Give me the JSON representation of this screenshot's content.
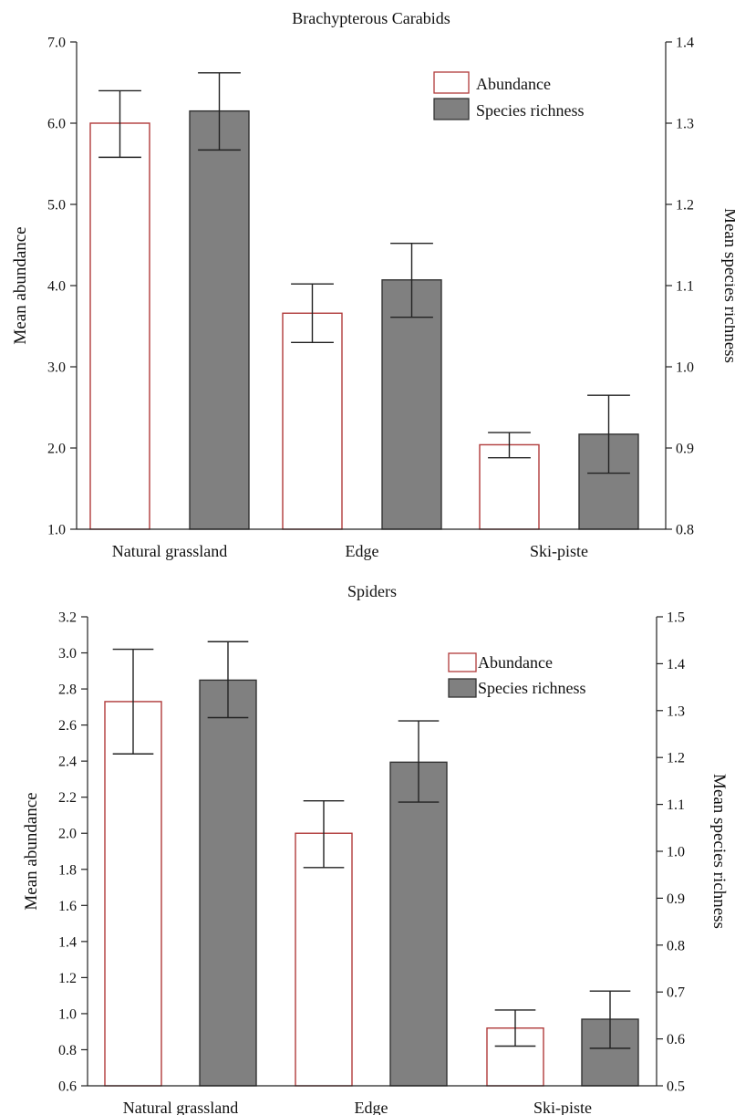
{
  "colors": {
    "abundance_edge": "#b03a3a",
    "abundance_fill": "#ffffff",
    "richness_fill": "#808080",
    "richness_edge": "#333333"
  },
  "chart_data": [
    {
      "type": "bar",
      "title": "Brachypterous Carabids",
      "categories": [
        "Natural grassland",
        "Edge",
        "Ski-piste"
      ],
      "ylabel": "Mean abundance",
      "y2label": "Mean species richness",
      "ylim": [
        1.0,
        7.0
      ],
      "y2lim": [
        0.8,
        1.4
      ],
      "yticks": [
        "1.0",
        "2.0",
        "3.0",
        "4.0",
        "5.0",
        "6.0",
        "7.0"
      ],
      "y2ticks": [
        "0.8",
        "0.9",
        "1.0",
        "1.1",
        "1.2",
        "1.3",
        "1.4"
      ],
      "legend": {
        "position": "top-right",
        "entries": [
          "Abundance",
          "Species richness"
        ]
      },
      "series": [
        {
          "name": "Abundance",
          "axis": "left",
          "values": [
            6.0,
            3.66,
            2.04
          ],
          "err_low": [
            5.58,
            3.3,
            1.88
          ],
          "err_high": [
            6.4,
            4.02,
            2.19
          ]
        },
        {
          "name": "Species richness",
          "axis": "right",
          "values": [
            1.315,
            1.107,
            0.917
          ],
          "err_low": [
            1.267,
            1.061,
            0.869
          ],
          "err_high": [
            1.362,
            1.152,
            0.965
          ]
        }
      ]
    },
    {
      "type": "bar",
      "title": "Spiders",
      "categories": [
        "Natural grassland",
        "Edge",
        "Ski-piste"
      ],
      "ylabel": "Mean abundance",
      "y2label": "Mean species richness",
      "ylim": [
        0.6,
        3.2
      ],
      "y2lim": [
        0.5,
        1.5
      ],
      "yticks": [
        "0.6",
        "0.8",
        "1.0",
        "1.2",
        "1.4",
        "1.6",
        "1.8",
        "2.0",
        "2.2",
        "2.4",
        "2.6",
        "2.8",
        "3.0",
        "3.2"
      ],
      "y2ticks": [
        "0.5",
        "0.6",
        "0.7",
        "0.8",
        "0.9",
        "1.0",
        "1.1",
        "1.2",
        "1.3",
        "1.4",
        "1.5"
      ],
      "legend": {
        "position": "top-right",
        "entries": [
          "Abundance",
          "Species richness"
        ]
      },
      "series": [
        {
          "name": "Abundance",
          "axis": "left",
          "values": [
            2.73,
            2.0,
            0.92
          ],
          "err_low": [
            2.44,
            1.81,
            0.82
          ],
          "err_high": [
            3.02,
            2.18,
            1.02
          ]
        },
        {
          "name": "Species richness",
          "axis": "right",
          "values": [
            1.365,
            1.19,
            0.642
          ],
          "err_low": [
            1.285,
            1.105,
            0.58
          ],
          "err_high": [
            1.447,
            1.278,
            0.702
          ]
        }
      ]
    }
  ]
}
